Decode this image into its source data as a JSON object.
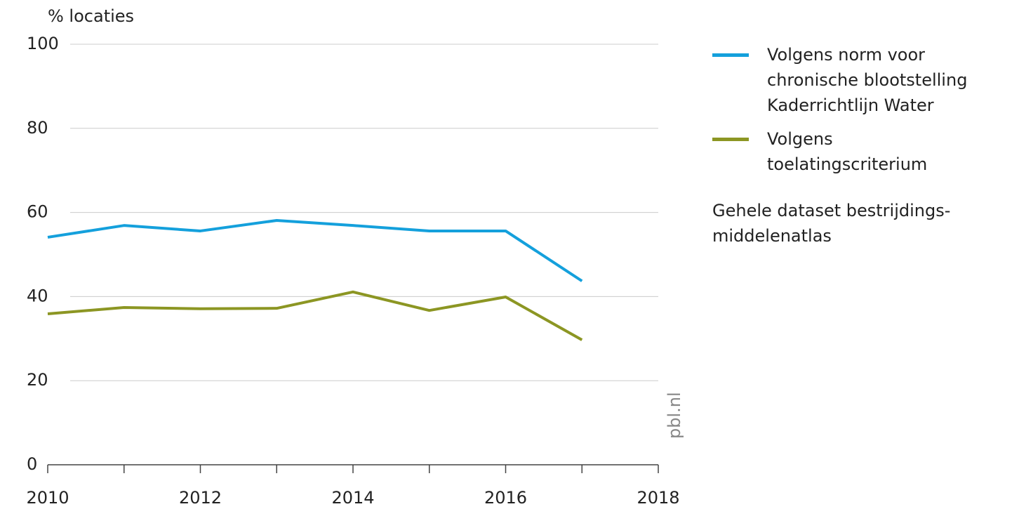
{
  "chart_data": {
    "type": "line",
    "y_label": "% locaties",
    "source": "pbl.nl",
    "x": [
      2010,
      2011,
      2012,
      2013,
      2014,
      2015,
      2016,
      2017
    ],
    "series": [
      {
        "name": "Volgens norm voor chronische blootstelling Kaderrichtlijn Water",
        "color": "#14a0dc",
        "values": [
          54.1,
          56.9,
          55.6,
          58.1,
          56.9,
          55.6,
          55.6,
          43.7
        ]
      },
      {
        "name": "Volgens toelatingscriterium",
        "color": "#8c9623",
        "values": [
          35.9,
          37.4,
          37.1,
          37.2,
          41.1,
          36.7,
          39.9,
          29.7
        ]
      }
    ],
    "note": "Gehele dataset bestrijdings-middelenatlas",
    "xlim": [
      2010,
      2018
    ],
    "xticks": [
      2010,
      2012,
      2014,
      2016,
      2018
    ],
    "xminor_ticks": [
      2011,
      2013,
      2015,
      2017
    ],
    "ylim": [
      0,
      100
    ],
    "yticks": [
      0,
      20,
      40,
      60,
      80,
      100
    ],
    "grid": true
  }
}
